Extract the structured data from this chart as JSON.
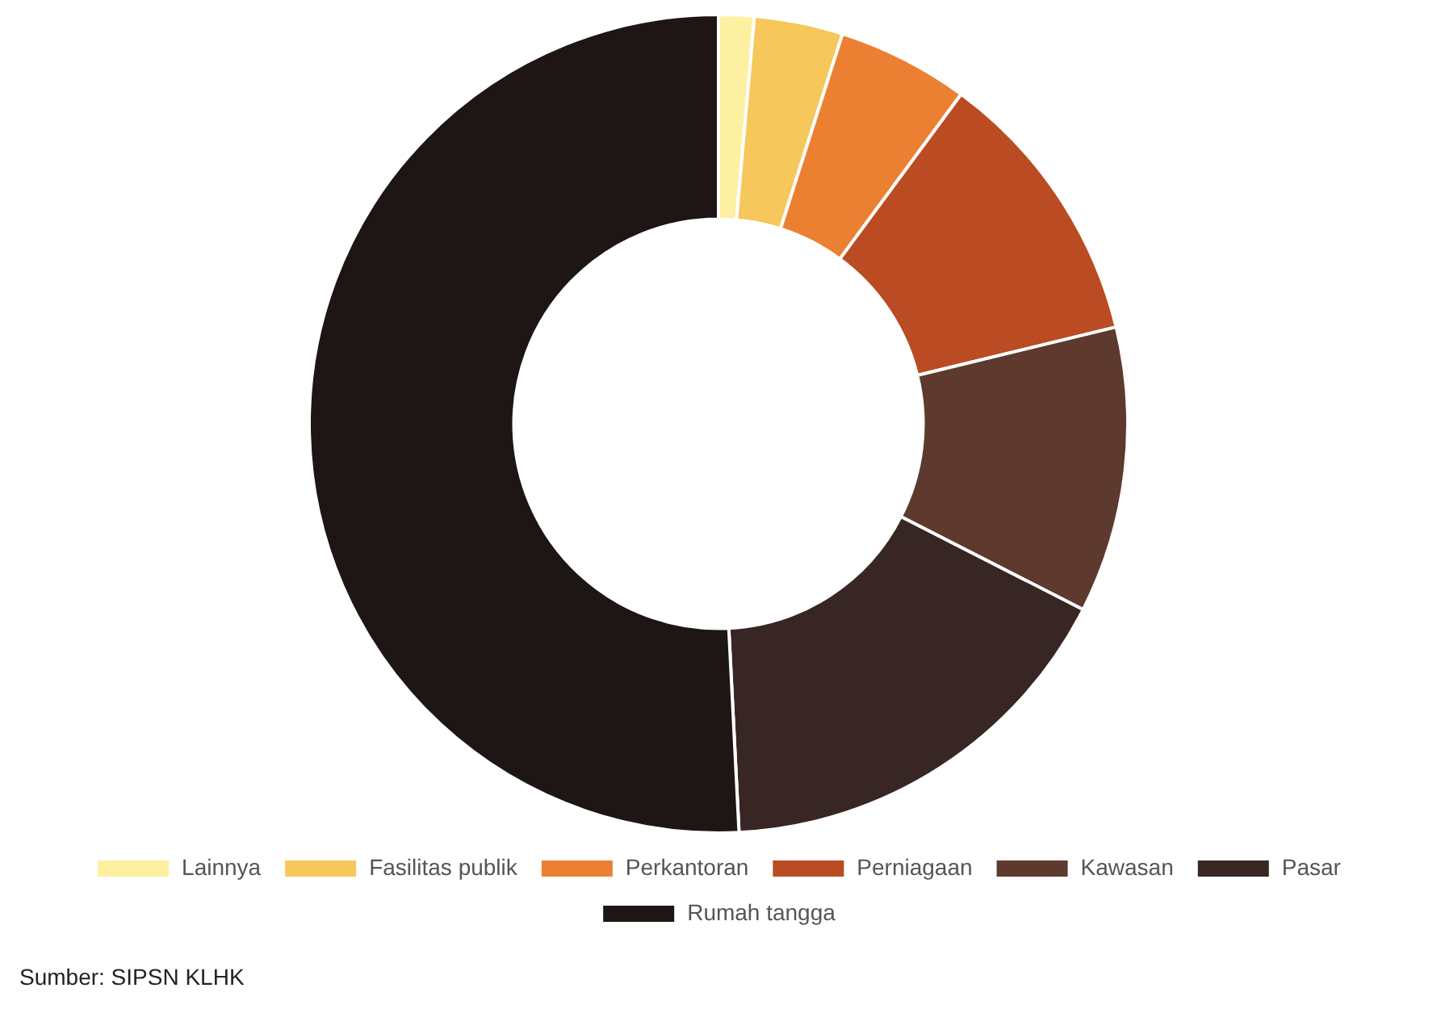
{
  "chart_data": {
    "type": "donut",
    "categories": [
      "Lainnya",
      "Fasilitas publik",
      "Perkantoran",
      "Perniagaan",
      "Kawasan",
      "Pasar",
      "Rumah tangga"
    ],
    "values": [
      1.4,
      3.5,
      5.2,
      11.1,
      11.3,
      16.7,
      50.8
    ],
    "colors": [
      "#fdf0a0",
      "#f6c75a",
      "#ec8032",
      "#bb4b22",
      "#5d3a2d",
      "#372624",
      "#1d1615"
    ],
    "legend": "bottom",
    "annotations": [
      "Sumber: SIPSN KLHK"
    ]
  }
}
